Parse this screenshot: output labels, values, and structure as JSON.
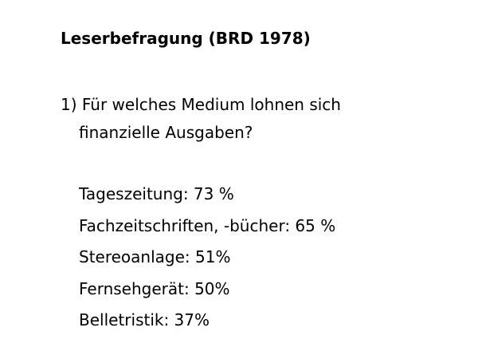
{
  "slide": {
    "title": "Leserbefragung (BRD 1978)",
    "question": {
      "line1": "1) Für welches Medium lohnen sich",
      "line2": "finanzielle Ausgaben?"
    },
    "answers": [
      "Tageszeitung: 73 %",
      "Fachzeitschriften, -bücher: 65 %",
      "Stereoanlage: 51%",
      "Fernsehgerät: 50%",
      "Belletristik: 37%"
    ]
  }
}
